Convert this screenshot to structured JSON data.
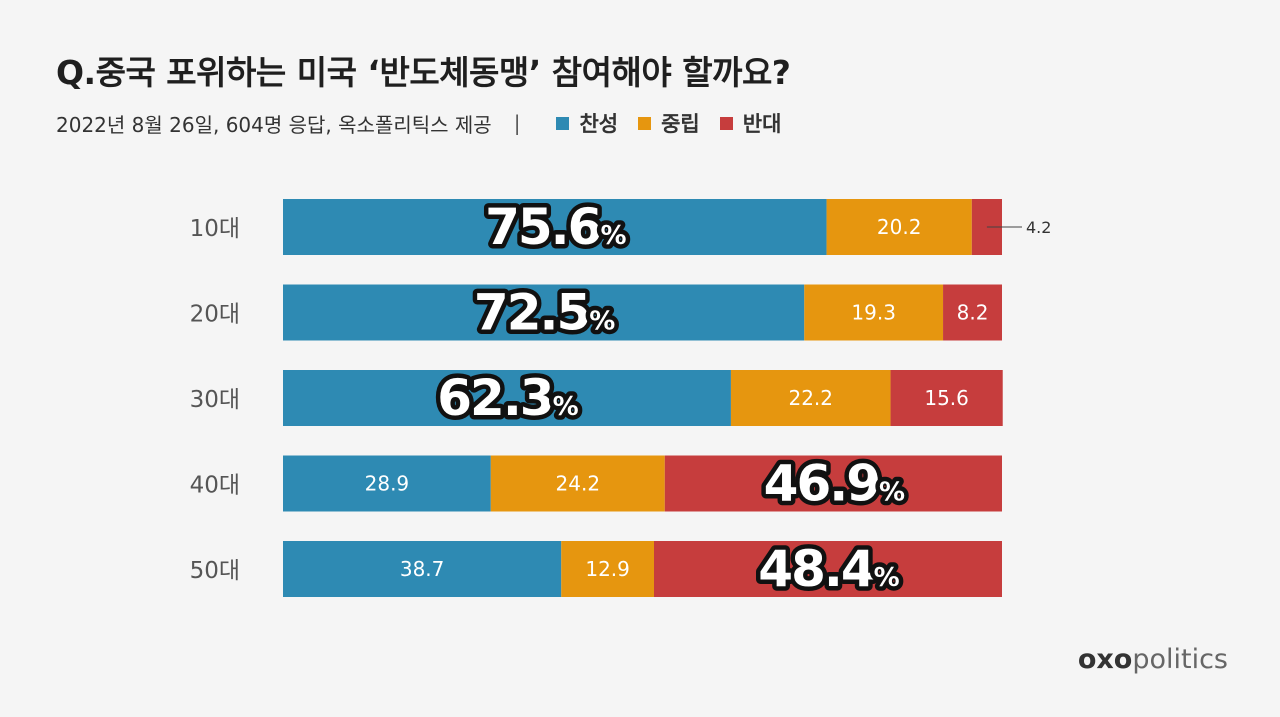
{
  "header": {
    "title": "Q.중국 포위하는 미국 ‘반도체동맹’ 참여해야 할까요?",
    "subtitle": "2022년 8월 26일, 604명 응답, 옥소폴리틱스 제공",
    "divider": "|"
  },
  "brand": {
    "bold": "oxo",
    "light": "politics"
  },
  "chart_data": {
    "type": "bar",
    "orientation": "horizontal",
    "stacked": true,
    "percent_stacked": true,
    "categories": [
      "10대",
      "20대",
      "30대",
      "40대",
      "50대"
    ],
    "series": [
      {
        "name": "찬성",
        "color": "#2e8ab3",
        "values": [
          75.6,
          72.5,
          62.3,
          28.9,
          38.7
        ]
      },
      {
        "name": "중립",
        "color": "#e6960f",
        "values": [
          20.2,
          19.3,
          22.2,
          24.2,
          12.9
        ]
      },
      {
        "name": "반대",
        "color": "#c63d3d",
        "values": [
          4.2,
          8.2,
          15.6,
          46.9,
          48.4
        ]
      }
    ],
    "highlight_series_per_category": [
      "찬성",
      "찬성",
      "찬성",
      "반대",
      "반대"
    ],
    "highlight_suffix": "%",
    "legend_position": "top-left",
    "xlim": [
      0,
      100
    ],
    "grid": false
  }
}
